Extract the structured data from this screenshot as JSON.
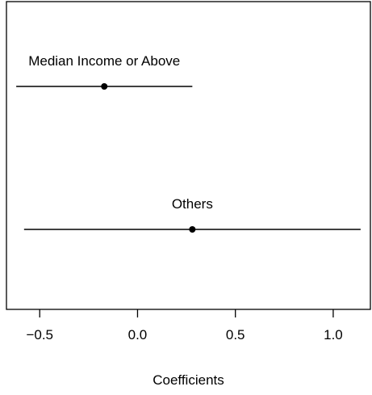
{
  "chart_data": {
    "type": "scatter",
    "subtype": "coefficient-plot",
    "title": "",
    "xlabel": "Coefficients",
    "ylabel": "",
    "xlim": [
      -0.67,
      1.19
    ],
    "xticks": [
      -0.5,
      0.0,
      0.5,
      1.0
    ],
    "xtick_labels": [
      "−0.5",
      "0.0",
      "0.5",
      "1.0"
    ],
    "grid": false,
    "legend": "none",
    "series": [
      {
        "label": "Median Income or Above",
        "estimate": -0.17,
        "ci_low": -0.62,
        "ci_high": 0.28
      },
      {
        "label": "Others",
        "estimate": 0.28,
        "ci_low": -0.58,
        "ci_high": 1.14
      }
    ]
  }
}
